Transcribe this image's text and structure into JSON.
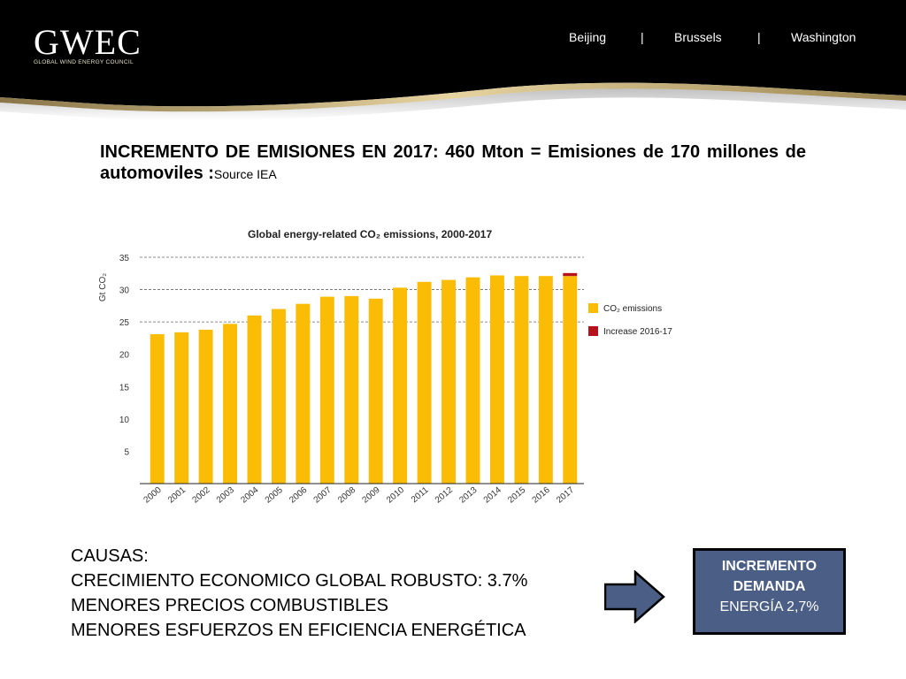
{
  "header": {
    "logo": "GWEC",
    "logo_sub": "GLOBAL WIND ENERGY COUNCIL",
    "nav": [
      "Beijing",
      "Brussels",
      "Washington"
    ],
    "separator": "|"
  },
  "headline": {
    "text": "INCREMENTO DE EMISIONES EN 2017: 460 Mton = Emisiones de 170 millones de automoviles :",
    "source": "Source IEA"
  },
  "chart_data": {
    "type": "bar",
    "title": "Global energy-related CO₂ emissions, 2000-2017",
    "ylabel": "Gt CO₂",
    "xlabel": "",
    "ylim": [
      0,
      35
    ],
    "yticks": [
      5,
      10,
      15,
      20,
      25,
      30,
      35
    ],
    "grid": true,
    "legend_position": "right",
    "categories": [
      "2000",
      "2001",
      "2002",
      "2003",
      "2004",
      "2005",
      "2006",
      "2007",
      "2008",
      "2009",
      "2010",
      "2011",
      "2012",
      "2013",
      "2014",
      "2015",
      "2016",
      "2017"
    ],
    "series": [
      {
        "name": "CO₂ emissions",
        "color": "#fbbc05",
        "values": [
          23.1,
          23.4,
          23.8,
          24.7,
          26.0,
          27.0,
          27.8,
          28.9,
          29.0,
          28.6,
          30.3,
          31.2,
          31.5,
          31.9,
          32.2,
          32.1,
          32.1,
          32.1
        ]
      },
      {
        "name": "Increase 2016-17",
        "color": "#b5121b",
        "values": [
          0,
          0,
          0,
          0,
          0,
          0,
          0,
          0,
          0,
          0,
          0,
          0,
          0,
          0,
          0,
          0,
          0,
          0.46
        ]
      }
    ]
  },
  "causes": {
    "lines": [
      "CAUSAS:",
      "CRECIMIENTO ECONOMICO GLOBAL ROBUSTO: 3.7%",
      "MENORES PRECIOS COMBUSTIBLES",
      "MENORES ESFUERZOS EN EFICIENCIA ENERGÉTICA"
    ]
  },
  "result": {
    "line1": "INCREMENTO",
    "line2": "DEMANDA",
    "line3": "ENERGÍA 2,7%"
  },
  "colors": {
    "header_bg": "#000000",
    "header_stripe": "#bda36a",
    "box_bg": "#4b5f86",
    "arrow_fill": "#4b5f86"
  }
}
